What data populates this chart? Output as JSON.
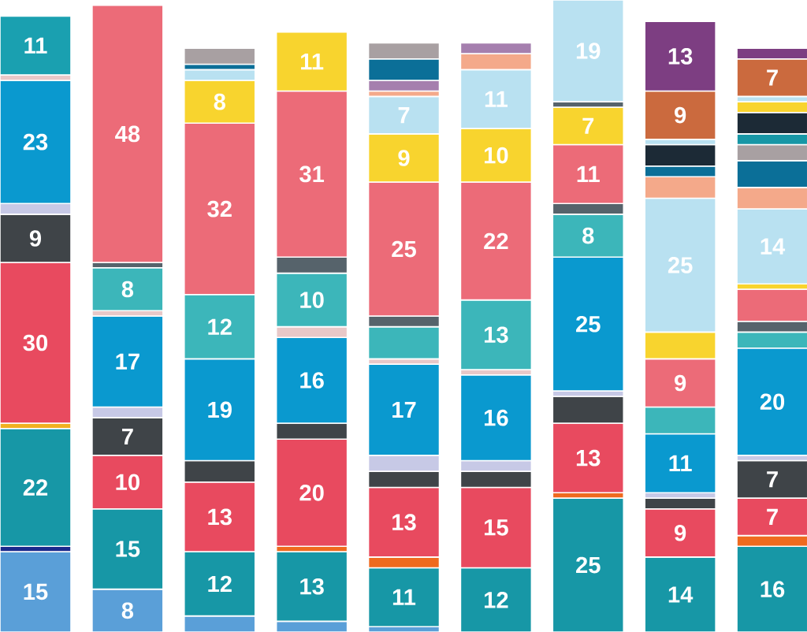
{
  "chart_data": {
    "type": "bar",
    "stacked": true,
    "categories": [
      null,
      null,
      null,
      null,
      null,
      null,
      null,
      null,
      null
    ],
    "series": [
      {
        "values": [
          15,
          8,
          3,
          2,
          1,
          12,
          25,
          14,
          16
        ],
        "colors": [
          "#5a9fd8",
          "#5a9fd8",
          "#5a9fd8",
          "#5a9fd8",
          "#5a9fd8",
          "#1797a6",
          "#1797a6",
          "#1797a6",
          "#1797a6"
        ],
        "value_labels": [
          "15",
          "8",
          null,
          null,
          null,
          "12",
          "25",
          "14",
          "16"
        ]
      },
      {
        "values": [
          1,
          15,
          12,
          13,
          11,
          15,
          1,
          9,
          2
        ],
        "colors": [
          "#1b2a8c",
          "#1797a6",
          "#1797a6",
          "#1797a6",
          "#1797a6",
          "#e84a5f",
          "#ef6a1f",
          "#e84a5f",
          "#ef6a1f"
        ],
        "value_labels": [
          null,
          "15",
          "12",
          "13",
          "11",
          "15",
          null,
          "9",
          null
        ]
      },
      {
        "values": [
          22,
          10,
          13,
          1,
          2,
          3,
          13,
          2,
          7
        ],
        "colors": [
          "#1797a6",
          "#e84a5f",
          "#e84a5f",
          "#ef6a1f",
          "#ef6a1f",
          "#3f4448",
          "#e84a5f",
          "#3f4448",
          "#e84a5f"
        ],
        "value_labels": [
          "22",
          "10",
          "13",
          null,
          null,
          null,
          "13",
          null,
          "7"
        ]
      },
      {
        "values": [
          1,
          7,
          4,
          20,
          13,
          2,
          5,
          1,
          7
        ],
        "colors": [
          "#f0b020",
          "#3f4448",
          "#3f4448",
          "#e84a5f",
          "#e84a5f",
          "#c7c9e6",
          "#3f4448",
          "#c7c9e6",
          "#3f4448"
        ],
        "value_labels": [
          null,
          "7",
          null,
          "20",
          "13",
          null,
          null,
          null,
          "7"
        ]
      },
      {
        "values": [
          30,
          2,
          19,
          3,
          3,
          16,
          1,
          11,
          1
        ],
        "colors": [
          "#e84a5f",
          "#c7c9e6",
          "#0a99cf",
          "#3f4448",
          "#3f4448",
          "#0a99cf",
          "#c7c9e6",
          "#0a99cf",
          "#c7c9e6"
        ],
        "value_labels": [
          "30",
          null,
          "19",
          null,
          null,
          "16",
          null,
          "11",
          null
        ]
      },
      {
        "values": [
          9,
          17,
          12,
          16,
          3,
          1,
          25,
          5,
          20
        ],
        "colors": [
          "#3f4448",
          "#0a99cf",
          "#3cb6ba",
          "#0a99cf",
          "#c7c9e6",
          "#e8c8c8",
          "#0a99cf",
          "#3cb6ba",
          "#0a99cf"
        ],
        "value_labels": [
          "9",
          "17",
          "12",
          "16",
          null,
          null,
          "25",
          null,
          "20"
        ]
      },
      {
        "values": [
          2,
          1,
          32,
          2,
          17,
          13,
          8,
          9,
          3
        ],
        "colors": [
          "#c7c9e6",
          "#e8c8c8",
          "#ec6b78",
          "#e8c8c8",
          "#0a99cf",
          "#3cb6ba",
          "#3cb6ba",
          "#ec6b78",
          "#3cb6ba"
        ],
        "value_labels": [
          null,
          null,
          "32",
          null,
          "17",
          "13",
          "8",
          "9",
          null
        ]
      },
      {
        "values": [
          23,
          8,
          8,
          10,
          1,
          22,
          2,
          5,
          2
        ],
        "colors": [
          "#0a99cf",
          "#3cb6ba",
          "#f8d42e",
          "#3cb6ba",
          "#e8c8c8",
          "#ec6b78",
          "#56636b",
          "#f8d42e",
          "#56636b"
        ],
        "value_labels": [
          "23",
          "8",
          "8",
          "10",
          null,
          "22",
          null,
          null,
          null
        ]
      },
      {
        "values": [
          1,
          1,
          2,
          3,
          6,
          10,
          11,
          25,
          6
        ],
        "colors": [
          "#e8c8c8",
          "#56636b",
          "#b9e1f1",
          "#56636b",
          "#3cb6ba",
          "#f8d42e",
          "#ec6b78",
          "#b9e1f1",
          "#ec6b78"
        ],
        "value_labels": [
          null,
          null,
          null,
          null,
          null,
          "10",
          "11",
          "25",
          null
        ]
      },
      {
        "values": [
          11,
          48,
          1,
          31,
          2,
          11,
          7,
          4,
          1
        ],
        "colors": [
          "#1aa0b0",
          "#ec6b78",
          "#0b6f98",
          "#ec6b78",
          "#56636b",
          "#b9e1f1",
          "#f8d42e",
          "#f4a98a",
          "#f8d42e"
        ],
        "value_labels": [
          "11",
          "48",
          null,
          "31",
          null,
          "11",
          "7",
          null,
          null
        ]
      },
      {
        "values": [
          null,
          null,
          3,
          11,
          25,
          3,
          1,
          2,
          14
        ],
        "colors": [
          null,
          null,
          "#a8a0a2",
          "#f8d42e",
          "#ec6b78",
          "#f4a98a",
          "#56636b",
          "#0b6f98",
          "#b9e1f1"
        ],
        "value_labels": [
          null,
          null,
          null,
          "11",
          "25",
          null,
          null,
          null,
          "14"
        ]
      },
      {
        "values": [
          null,
          null,
          null,
          null,
          9,
          2,
          19,
          4,
          4
        ],
        "colors": [
          null,
          null,
          null,
          null,
          "#f8d42e",
          "#a57fae",
          "#b9e1f1",
          "#1c2a36",
          "#f4a98a"
        ],
        "value_labels": [
          null,
          null,
          null,
          null,
          "9",
          null,
          "19",
          null,
          null
        ]
      },
      {
        "values": [
          null,
          null,
          null,
          null,
          7,
          null,
          null,
          1,
          5
        ],
        "colors": [
          null,
          null,
          null,
          null,
          "#b9e1f1",
          null,
          null,
          "#b9e1f1",
          "#0b6f98"
        ],
        "value_labels": [
          null,
          null,
          null,
          null,
          "7",
          null,
          null,
          null,
          null
        ]
      },
      {
        "values": [
          null,
          null,
          null,
          null,
          1,
          null,
          null,
          9,
          3
        ],
        "colors": [
          null,
          null,
          null,
          null,
          "#f4a98a",
          null,
          null,
          "#cb6a3e",
          "#a8a0a2"
        ],
        "value_labels": [
          null,
          null,
          null,
          null,
          null,
          null,
          null,
          "9",
          null
        ]
      },
      {
        "values": [
          null,
          null,
          null,
          null,
          2,
          null,
          null,
          13,
          2
        ],
        "colors": [
          null,
          null,
          null,
          null,
          "#a57fae",
          null,
          null,
          "#7d3e82",
          "#1797a6"
        ],
        "value_labels": [
          null,
          null,
          null,
          null,
          null,
          null,
          null,
          "13",
          null
        ]
      },
      {
        "values": [
          null,
          null,
          null,
          null,
          4,
          null,
          null,
          null,
          4
        ],
        "colors": [
          null,
          null,
          null,
          null,
          "#0b6f98",
          null,
          null,
          null,
          "#1c2a36"
        ],
        "value_labels": [
          null,
          null,
          null,
          null,
          null,
          null,
          null,
          null,
          null
        ]
      },
      {
        "values": [
          null,
          null,
          null,
          null,
          3,
          null,
          null,
          null,
          2
        ],
        "colors": [
          null,
          null,
          null,
          null,
          "#a8a0a2",
          null,
          null,
          null,
          "#f8d42e"
        ],
        "value_labels": [
          null,
          null,
          null,
          null,
          null,
          null,
          null,
          null,
          null
        ]
      },
      {
        "values": [
          null,
          null,
          null,
          null,
          null,
          null,
          null,
          null,
          1
        ],
        "colors": [
          null,
          null,
          null,
          null,
          null,
          null,
          null,
          null,
          "#b9e1f1"
        ],
        "value_labels": [
          null,
          null,
          null,
          null,
          null,
          null,
          null,
          null,
          null
        ]
      },
      {
        "values": [
          null,
          null,
          null,
          null,
          null,
          null,
          null,
          null,
          7
        ],
        "colors": [
          null,
          null,
          null,
          null,
          null,
          null,
          null,
          null,
          "#cb6a3e"
        ],
        "value_labels": [
          null,
          null,
          null,
          null,
          null,
          null,
          null,
          null,
          "7"
        ]
      },
      {
        "values": [
          null,
          null,
          null,
          null,
          null,
          null,
          null,
          null,
          2
        ],
        "colors": [
          null,
          null,
          null,
          null,
          null,
          null,
          null,
          null,
          "#7d3e82"
        ],
        "value_labels": [
          null,
          null,
          null,
          null,
          null,
          null,
          null,
          null,
          null
        ]
      }
    ]
  }
}
